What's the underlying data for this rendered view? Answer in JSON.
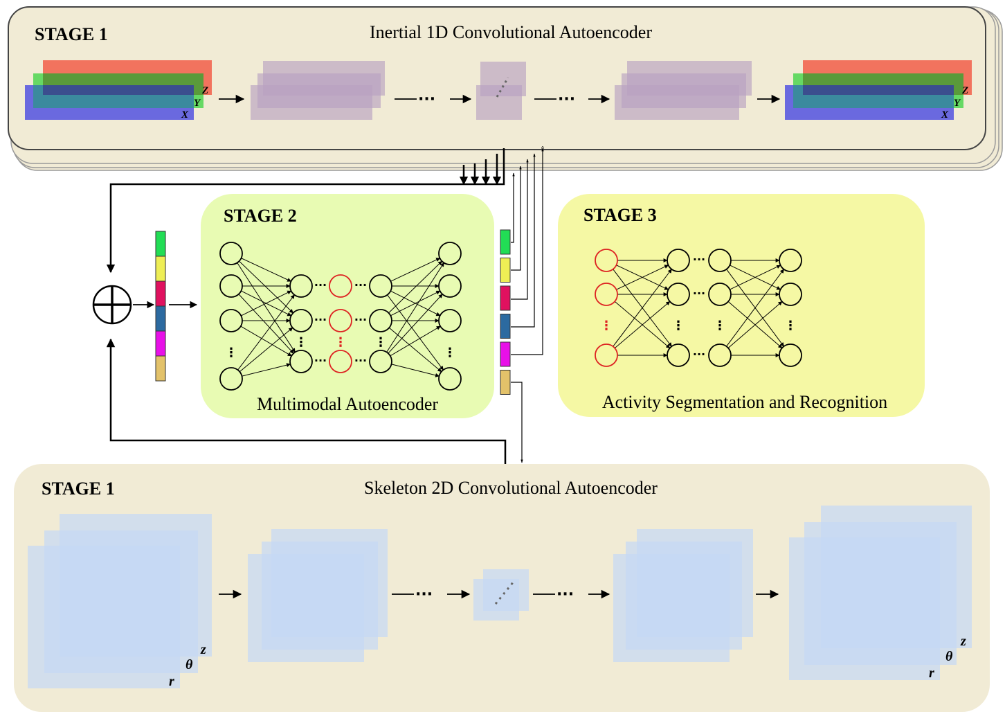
{
  "inertial_stage": {
    "stage_label": "STAGE 1",
    "title": "Inertial 1D Convolutional Autoencoder",
    "axes": [
      "X",
      "Y",
      "Z"
    ]
  },
  "multimodal_stage": {
    "stage_label": "STAGE 2",
    "caption": "Multimodal Autoencoder"
  },
  "recognition_stage": {
    "stage_label": "STAGE 3",
    "caption": "Activity Segmentation and Recognition"
  },
  "skeleton_stage": {
    "stage_label": "STAGE 1",
    "title": "Skeleton 2D Convolutional Autoencoder",
    "axes": [
      "r",
      "θ",
      "z"
    ]
  },
  "fusion_symbol": "⊕",
  "latent_vector_colors": [
    "#22dd55",
    "#eeee55",
    "#e0115f",
    "#2c6aa0",
    "#e810e8",
    "#e3c26a"
  ],
  "colors": {
    "stage1_fill": "#f1ebd5",
    "stage2_fill": "#e8fbb3",
    "stage3_fill": "#f5f8a4",
    "inertial_x": "#5b5be0",
    "inertial_y": "#5ed85e",
    "inertial_z": "#f2735e",
    "feature_map": "#b9a1c2",
    "skeleton_map": "#c5d9f5",
    "neuron_highlight": "#dd2222"
  }
}
